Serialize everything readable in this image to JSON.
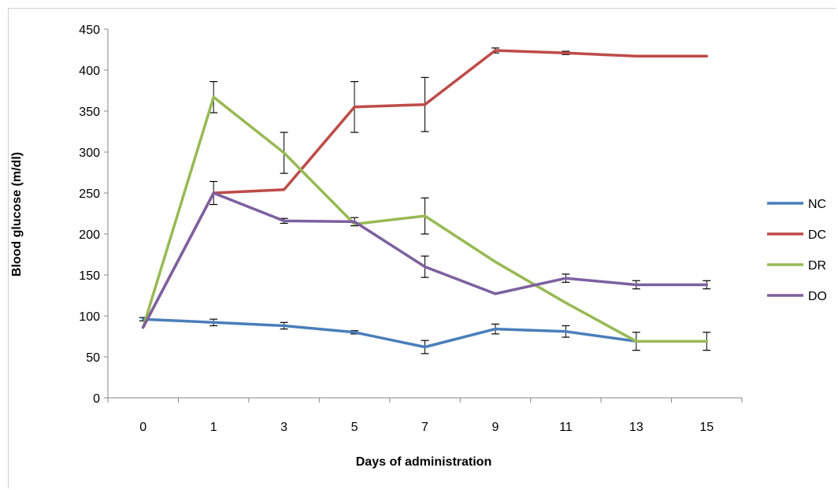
{
  "chart_data": {
    "type": "line",
    "xlabel": "Days of administration",
    "ylabel": "Blood glucose (m/dl)",
    "categories": [
      "0",
      "1",
      "3",
      "5",
      "7",
      "9",
      "11",
      "13",
      "15"
    ],
    "ylim": [
      0,
      450
    ],
    "yticks": [
      0,
      50,
      100,
      150,
      200,
      250,
      300,
      350,
      400,
      450
    ],
    "grid": false,
    "legend": "right",
    "series": [
      {
        "name": "NC",
        "color": "#4a7ebb",
        "values": [
          96,
          92,
          88,
          80,
          62,
          84,
          81,
          69,
          69
        ],
        "errors": [
          2,
          4,
          4,
          2,
          8,
          6,
          7,
          11,
          11
        ]
      },
      {
        "name": "DC",
        "color": "#be4b48",
        "values": [
          86,
          250,
          254,
          355,
          358,
          424,
          421,
          417,
          417
        ],
        "errors": [
          0,
          0,
          0,
          31,
          33,
          3,
          2,
          0,
          0
        ]
      },
      {
        "name": "DR",
        "color": "#98b954",
        "values": [
          86,
          367,
          299,
          212,
          222,
          166,
          116,
          69,
          69
        ],
        "errors": [
          0,
          19,
          25,
          0,
          22,
          0,
          0,
          0,
          0
        ]
      },
      {
        "name": "DO",
        "color": "#7d60a0",
        "values": [
          86,
          250,
          216,
          215,
          160,
          127,
          146,
          138,
          138
        ],
        "errors": [
          0,
          14,
          3,
          5,
          13,
          0,
          5,
          5,
          5
        ]
      }
    ]
  }
}
